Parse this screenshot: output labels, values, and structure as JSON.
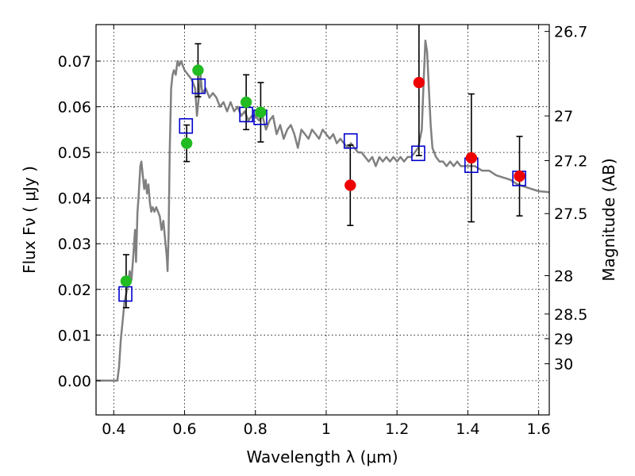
{
  "chart_data": {
    "type": "scatter",
    "xlabel": "Wavelength  λ (μm)",
    "ylabel": "Flux  Fν  ( μJy )",
    "y2label": "Magnitude (AB)",
    "xlim": [
      0.35,
      1.63
    ],
    "ylim": [
      -0.0075,
      0.078
    ],
    "grid": true,
    "x_ticks": [
      0.4,
      0.6,
      0.8,
      1.0,
      1.2,
      1.4,
      1.6
    ],
    "x_tick_labels": [
      "0.4",
      "0.6",
      "0.8",
      "1",
      "1.2",
      "1.4",
      "1.6"
    ],
    "y_ticks": [
      0.0,
      0.01,
      0.02,
      0.03,
      0.04,
      0.05,
      0.06,
      0.07
    ],
    "y_tick_labels": [
      "0.00",
      "0.01",
      "0.02",
      "0.03",
      "0.04",
      "0.05",
      "0.06",
      "0.07"
    ],
    "y2_ticks": [
      {
        "label": "26.7",
        "flux": 0.0765
      },
      {
        "label": "27",
        "flux": 0.058
      },
      {
        "label": "27.2",
        "flux": 0.0482
      },
      {
        "label": "27.5",
        "flux": 0.0366
      },
      {
        "label": "28",
        "flux": 0.023
      },
      {
        "label": "28.5",
        "flux": 0.0146
      },
      {
        "label": "29",
        "flux": 0.0092
      },
      {
        "label": "30",
        "flux": 0.0037
      }
    ],
    "series": [
      {
        "kind": "line",
        "color": "#808080",
        "points": [
          [
            0.35,
            0.0
          ],
          [
            0.41,
            0.0
          ],
          [
            0.415,
            0.003
          ],
          [
            0.42,
            0.009
          ],
          [
            0.425,
            0.013
          ],
          [
            0.43,
            0.017
          ],
          [
            0.435,
            0.019
          ],
          [
            0.44,
            0.021
          ],
          [
            0.445,
            0.024
          ],
          [
            0.45,
            0.022
          ],
          [
            0.455,
            0.027
          ],
          [
            0.46,
            0.033
          ],
          [
            0.463,
            0.026
          ],
          [
            0.467,
            0.037
          ],
          [
            0.47,
            0.04
          ],
          [
            0.475,
            0.047
          ],
          [
            0.478,
            0.048
          ],
          [
            0.482,
            0.045
          ],
          [
            0.486,
            0.042
          ],
          [
            0.49,
            0.044
          ],
          [
            0.494,
            0.041
          ],
          [
            0.498,
            0.043
          ],
          [
            0.502,
            0.039
          ],
          [
            0.506,
            0.037
          ],
          [
            0.51,
            0.038
          ],
          [
            0.515,
            0.037
          ],
          [
            0.52,
            0.038
          ],
          [
            0.525,
            0.037
          ],
          [
            0.53,
            0.036
          ],
          [
            0.535,
            0.033
          ],
          [
            0.54,
            0.035
          ],
          [
            0.545,
            0.031
          ],
          [
            0.55,
            0.027
          ],
          [
            0.552,
            0.024
          ],
          [
            0.555,
            0.032
          ],
          [
            0.558,
            0.05
          ],
          [
            0.562,
            0.064
          ],
          [
            0.566,
            0.067
          ],
          [
            0.57,
            0.068
          ],
          [
            0.575,
            0.067
          ],
          [
            0.58,
            0.07
          ],
          [
            0.585,
            0.069
          ],
          [
            0.59,
            0.07
          ],
          [
            0.6,
            0.068
          ],
          [
            0.61,
            0.067
          ],
          [
            0.62,
            0.066
          ],
          [
            0.63,
            0.064
          ],
          [
            0.635,
            0.058
          ],
          [
            0.64,
            0.062
          ],
          [
            0.645,
            0.067
          ],
          [
            0.65,
            0.063
          ],
          [
            0.66,
            0.064
          ],
          [
            0.67,
            0.062
          ],
          [
            0.68,
            0.063
          ],
          [
            0.69,
            0.062
          ],
          [
            0.7,
            0.06
          ],
          [
            0.71,
            0.061
          ],
          [
            0.72,
            0.059
          ],
          [
            0.73,
            0.061
          ],
          [
            0.74,
            0.059
          ],
          [
            0.75,
            0.06
          ],
          [
            0.76,
            0.058
          ],
          [
            0.77,
            0.059
          ],
          [
            0.78,
            0.057
          ],
          [
            0.79,
            0.058
          ],
          [
            0.8,
            0.058
          ],
          [
            0.81,
            0.057
          ],
          [
            0.82,
            0.058
          ],
          [
            0.83,
            0.055
          ],
          [
            0.84,
            0.057
          ],
          [
            0.85,
            0.058
          ],
          [
            0.86,
            0.054
          ],
          [
            0.87,
            0.056
          ],
          [
            0.88,
            0.053
          ],
          [
            0.89,
            0.055
          ],
          [
            0.9,
            0.056
          ],
          [
            0.91,
            0.054
          ],
          [
            0.92,
            0.051
          ],
          [
            0.93,
            0.055
          ],
          [
            0.94,
            0.054
          ],
          [
            0.95,
            0.053
          ],
          [
            0.96,
            0.055
          ],
          [
            0.97,
            0.054
          ],
          [
            0.98,
            0.053
          ],
          [
            0.99,
            0.055
          ],
          [
            1.0,
            0.054
          ],
          [
            1.01,
            0.053
          ],
          [
            1.02,
            0.054
          ],
          [
            1.03,
            0.052
          ],
          [
            1.04,
            0.053
          ],
          [
            1.05,
            0.052
          ],
          [
            1.06,
            0.051
          ],
          [
            1.07,
            0.052
          ],
          [
            1.08,
            0.051
          ],
          [
            1.09,
            0.05
          ],
          [
            1.1,
            0.05
          ],
          [
            1.11,
            0.049
          ],
          [
            1.12,
            0.048
          ],
          [
            1.13,
            0.049
          ],
          [
            1.14,
            0.047
          ],
          [
            1.15,
            0.049
          ],
          [
            1.16,
            0.048
          ],
          [
            1.17,
            0.049
          ],
          [
            1.18,
            0.048
          ],
          [
            1.19,
            0.049
          ],
          [
            1.2,
            0.048
          ],
          [
            1.21,
            0.049
          ],
          [
            1.22,
            0.048
          ],
          [
            1.23,
            0.049
          ],
          [
            1.24,
            0.049
          ],
          [
            1.25,
            0.05
          ],
          [
            1.26,
            0.051
          ],
          [
            1.27,
            0.055
          ],
          [
            1.275,
            0.065
          ],
          [
            1.28,
            0.0745
          ],
          [
            1.285,
            0.072
          ],
          [
            1.29,
            0.064
          ],
          [
            1.295,
            0.056
          ],
          [
            1.3,
            0.051
          ],
          [
            1.31,
            0.049
          ],
          [
            1.32,
            0.048
          ],
          [
            1.33,
            0.048
          ],
          [
            1.34,
            0.047
          ],
          [
            1.35,
            0.048
          ],
          [
            1.36,
            0.047
          ],
          [
            1.37,
            0.048
          ],
          [
            1.38,
            0.047
          ],
          [
            1.39,
            0.047
          ],
          [
            1.4,
            0.047
          ],
          [
            1.42,
            0.047
          ],
          [
            1.44,
            0.046
          ],
          [
            1.46,
            0.046
          ],
          [
            1.48,
            0.045
          ],
          [
            1.5,
            0.0445
          ],
          [
            1.52,
            0.044
          ],
          [
            1.54,
            0.043
          ],
          [
            1.56,
            0.0425
          ],
          [
            1.58,
            0.042
          ],
          [
            1.6,
            0.0415
          ],
          [
            1.63,
            0.0413
          ]
        ]
      },
      {
        "kind": "points",
        "marker": "square",
        "color": "#0000cc",
        "points": [
          [
            0.433,
            0.019
          ],
          [
            0.604,
            0.0558
          ],
          [
            0.64,
            0.0645
          ],
          [
            0.774,
            0.0583
          ],
          [
            0.814,
            0.0577
          ],
          [
            1.069,
            0.0525
          ],
          [
            1.26,
            0.0498
          ],
          [
            1.41,
            0.0472
          ],
          [
            1.545,
            0.0443
          ]
        ]
      },
      {
        "kind": "points",
        "marker": "circle",
        "color": "#22bb22",
        "points": [
          [
            0.435,
            0.0218
          ],
          [
            0.606,
            0.052
          ],
          [
            0.638,
            0.068
          ],
          [
            0.774,
            0.061
          ],
          [
            0.815,
            0.0588
          ]
        ]
      },
      {
        "kind": "points",
        "marker": "circle",
        "color": "#ee0000",
        "points": [
          [
            1.068,
            0.0428
          ],
          [
            1.262,
            0.0653
          ],
          [
            1.41,
            0.0488
          ],
          [
            1.546,
            0.0448
          ]
        ]
      }
    ],
    "error_bars": [
      {
        "x": 0.435,
        "y": 0.0218,
        "err": 0.0058
      },
      {
        "x": 0.606,
        "y": 0.052,
        "err": 0.004
      },
      {
        "x": 0.638,
        "y": 0.068,
        "err": 0.0058
      },
      {
        "x": 0.774,
        "y": 0.061,
        "err": 0.006
      },
      {
        "x": 0.815,
        "y": 0.0588,
        "err": 0.0065
      },
      {
        "x": 1.068,
        "y": 0.0428,
        "err": 0.0088
      },
      {
        "x": 1.262,
        "y": 0.0653,
        "err": 0.016
      },
      {
        "x": 1.41,
        "y": 0.0488,
        "err": 0.014
      },
      {
        "x": 1.546,
        "y": 0.0448,
        "err": 0.0087
      }
    ]
  }
}
